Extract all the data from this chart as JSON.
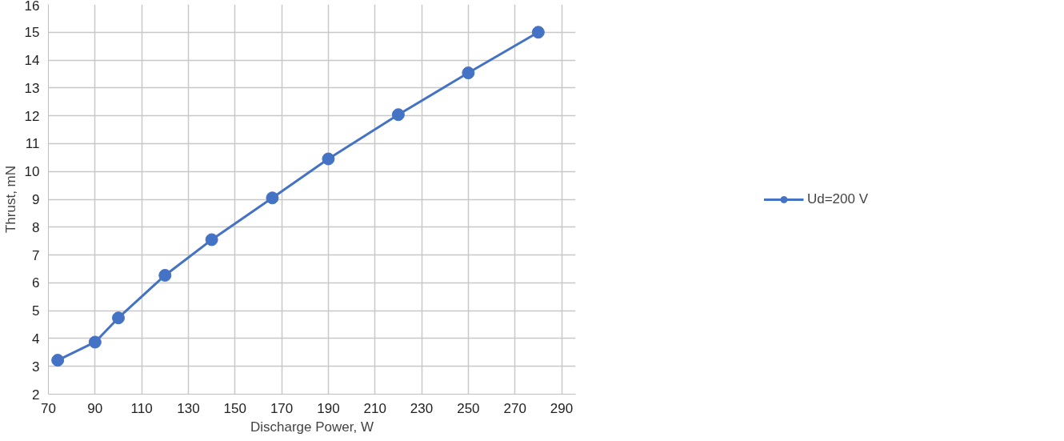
{
  "chart_data": {
    "type": "line",
    "xlabel": "Discharge Power, W",
    "ylabel": "Thrust, mN",
    "x": [
      74,
      90,
      100,
      120,
      140,
      166,
      190,
      220,
      250,
      280
    ],
    "series": [
      {
        "name": "Ud=200 V",
        "color": "#4472c4",
        "values": [
          3.22,
          3.87,
          4.74,
          6.27,
          7.55,
          9.05,
          10.45,
          12.04,
          13.54,
          15.0
        ]
      }
    ],
    "xlim": [
      70,
      296
    ],
    "xticks": [
      70,
      90,
      110,
      130,
      150,
      170,
      190,
      210,
      230,
      250,
      270,
      290
    ],
    "ylim": [
      2,
      16
    ],
    "yticks": [
      2,
      3,
      4,
      5,
      6,
      7,
      8,
      9,
      10,
      11,
      12,
      13,
      14,
      15,
      16
    ],
    "grid": true,
    "legend": "right",
    "marker": "circle",
    "line_style": "solid"
  }
}
